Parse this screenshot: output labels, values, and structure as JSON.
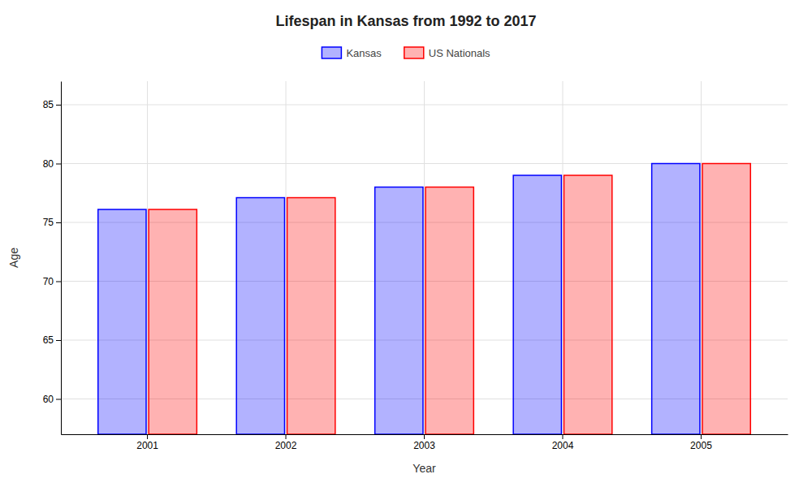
{
  "chart_data": {
    "type": "bar",
    "title": "Lifespan in Kansas from 1992 to 2017",
    "x_label": "Year",
    "y_label": "Age",
    "categories": [
      "2001",
      "2002",
      "2003",
      "2004",
      "2005"
    ],
    "series": [
      {
        "name": "Kansas",
        "color": "#0000ff",
        "values": [
          76.1,
          77.1,
          78.0,
          79.0,
          80.0
        ]
      },
      {
        "name": "US Nationals",
        "color": "#ff0000",
        "values": [
          76.1,
          77.1,
          78.0,
          79.0,
          80.0
        ]
      }
    ],
    "ylim": [
      57,
      87
    ],
    "yticks": [
      60,
      65,
      70,
      75,
      80,
      85
    ],
    "grid": true,
    "legend": "top"
  }
}
